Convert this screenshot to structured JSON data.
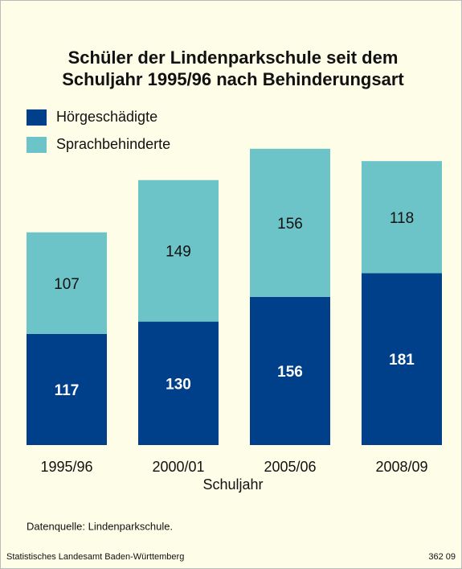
{
  "chart_data": {
    "type": "stacked_bar",
    "title": [
      "Schüler der Lindenparkschule seit dem",
      "Schuljahr 1995/96 nach Behinderungsart"
    ],
    "categories": [
      "1995/96",
      "2000/01",
      "2005/06",
      "2008/09"
    ],
    "x_label": "Schuljahr",
    "series": [
      {
        "name": "Hörgeschädigte",
        "color": "#003f8a",
        "values": [
          117,
          130,
          156,
          181
        ]
      },
      {
        "name": "Sprachbehinderte",
        "color": "#6cc3c8",
        "values": [
          107,
          149,
          156,
          118
        ]
      }
    ],
    "source": "Datenquelle: Lindenparkschule.",
    "footer_left": "Statistisches Landesamt Baden-Württemberg",
    "footer_right": "362 09"
  }
}
